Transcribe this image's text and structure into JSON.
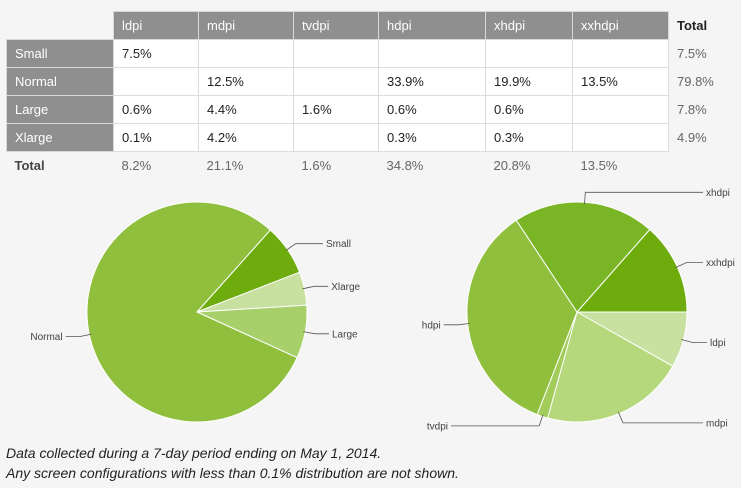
{
  "table": {
    "columns": [
      "ldpi",
      "mdpi",
      "tvdpi",
      "hdpi",
      "xhdpi",
      "xxhdpi"
    ],
    "total_label": "Total",
    "rows": [
      {
        "label": "Small",
        "cells": [
          "7.5%",
          "",
          "",
          "",
          "",
          ""
        ],
        "total": "7.5%"
      },
      {
        "label": "Normal",
        "cells": [
          "",
          "12.5%",
          "",
          "33.9%",
          "19.9%",
          "13.5%"
        ],
        "total": "79.8%"
      },
      {
        "label": "Large",
        "cells": [
          "0.6%",
          "4.4%",
          "1.6%",
          "0.6%",
          "0.6%",
          ""
        ],
        "total": "7.8%"
      },
      {
        "label": "Xlarge",
        "cells": [
          "0.1%",
          "4.2%",
          "",
          "0.3%",
          "0.3%",
          ""
        ],
        "total": "4.9%"
      }
    ],
    "column_totals": [
      "8.2%",
      "21.1%",
      "1.6%",
      "34.8%",
      "20.8%",
      "13.5%"
    ]
  },
  "chart_data": [
    {
      "type": "pie",
      "slices": [
        {
          "label": "Small",
          "value": 7.5,
          "color": "#6eab0c"
        },
        {
          "label": "Xlarge",
          "value": 4.9,
          "color": "#c8e0a0"
        },
        {
          "label": "Large",
          "value": 7.8,
          "color": "#a7d06a"
        },
        {
          "label": "Normal",
          "value": 79.8,
          "color": "#8fbf3d"
        }
      ]
    },
    {
      "type": "pie",
      "slices": [
        {
          "label": "xxhdpi",
          "value": 13.5,
          "color": "#6eab0c"
        },
        {
          "label": "ldpi",
          "value": 8.2,
          "color": "#c8e0a0"
        },
        {
          "label": "mdpi",
          "value": 21.1,
          "color": "#b5d87c"
        },
        {
          "label": "tvdpi",
          "value": 1.6,
          "color": "#a1cc5a"
        },
        {
          "label": "hdpi",
          "value": 34.8,
          "color": "#8fbf3d"
        },
        {
          "label": "xhdpi",
          "value": 20.8,
          "color": "#7ab526"
        }
      ]
    }
  ],
  "footnotes": [
    "Data collected during a 7-day period ending on May 1, 2014.",
    "Any screen configurations with less than 0.1% distribution are not shown."
  ]
}
